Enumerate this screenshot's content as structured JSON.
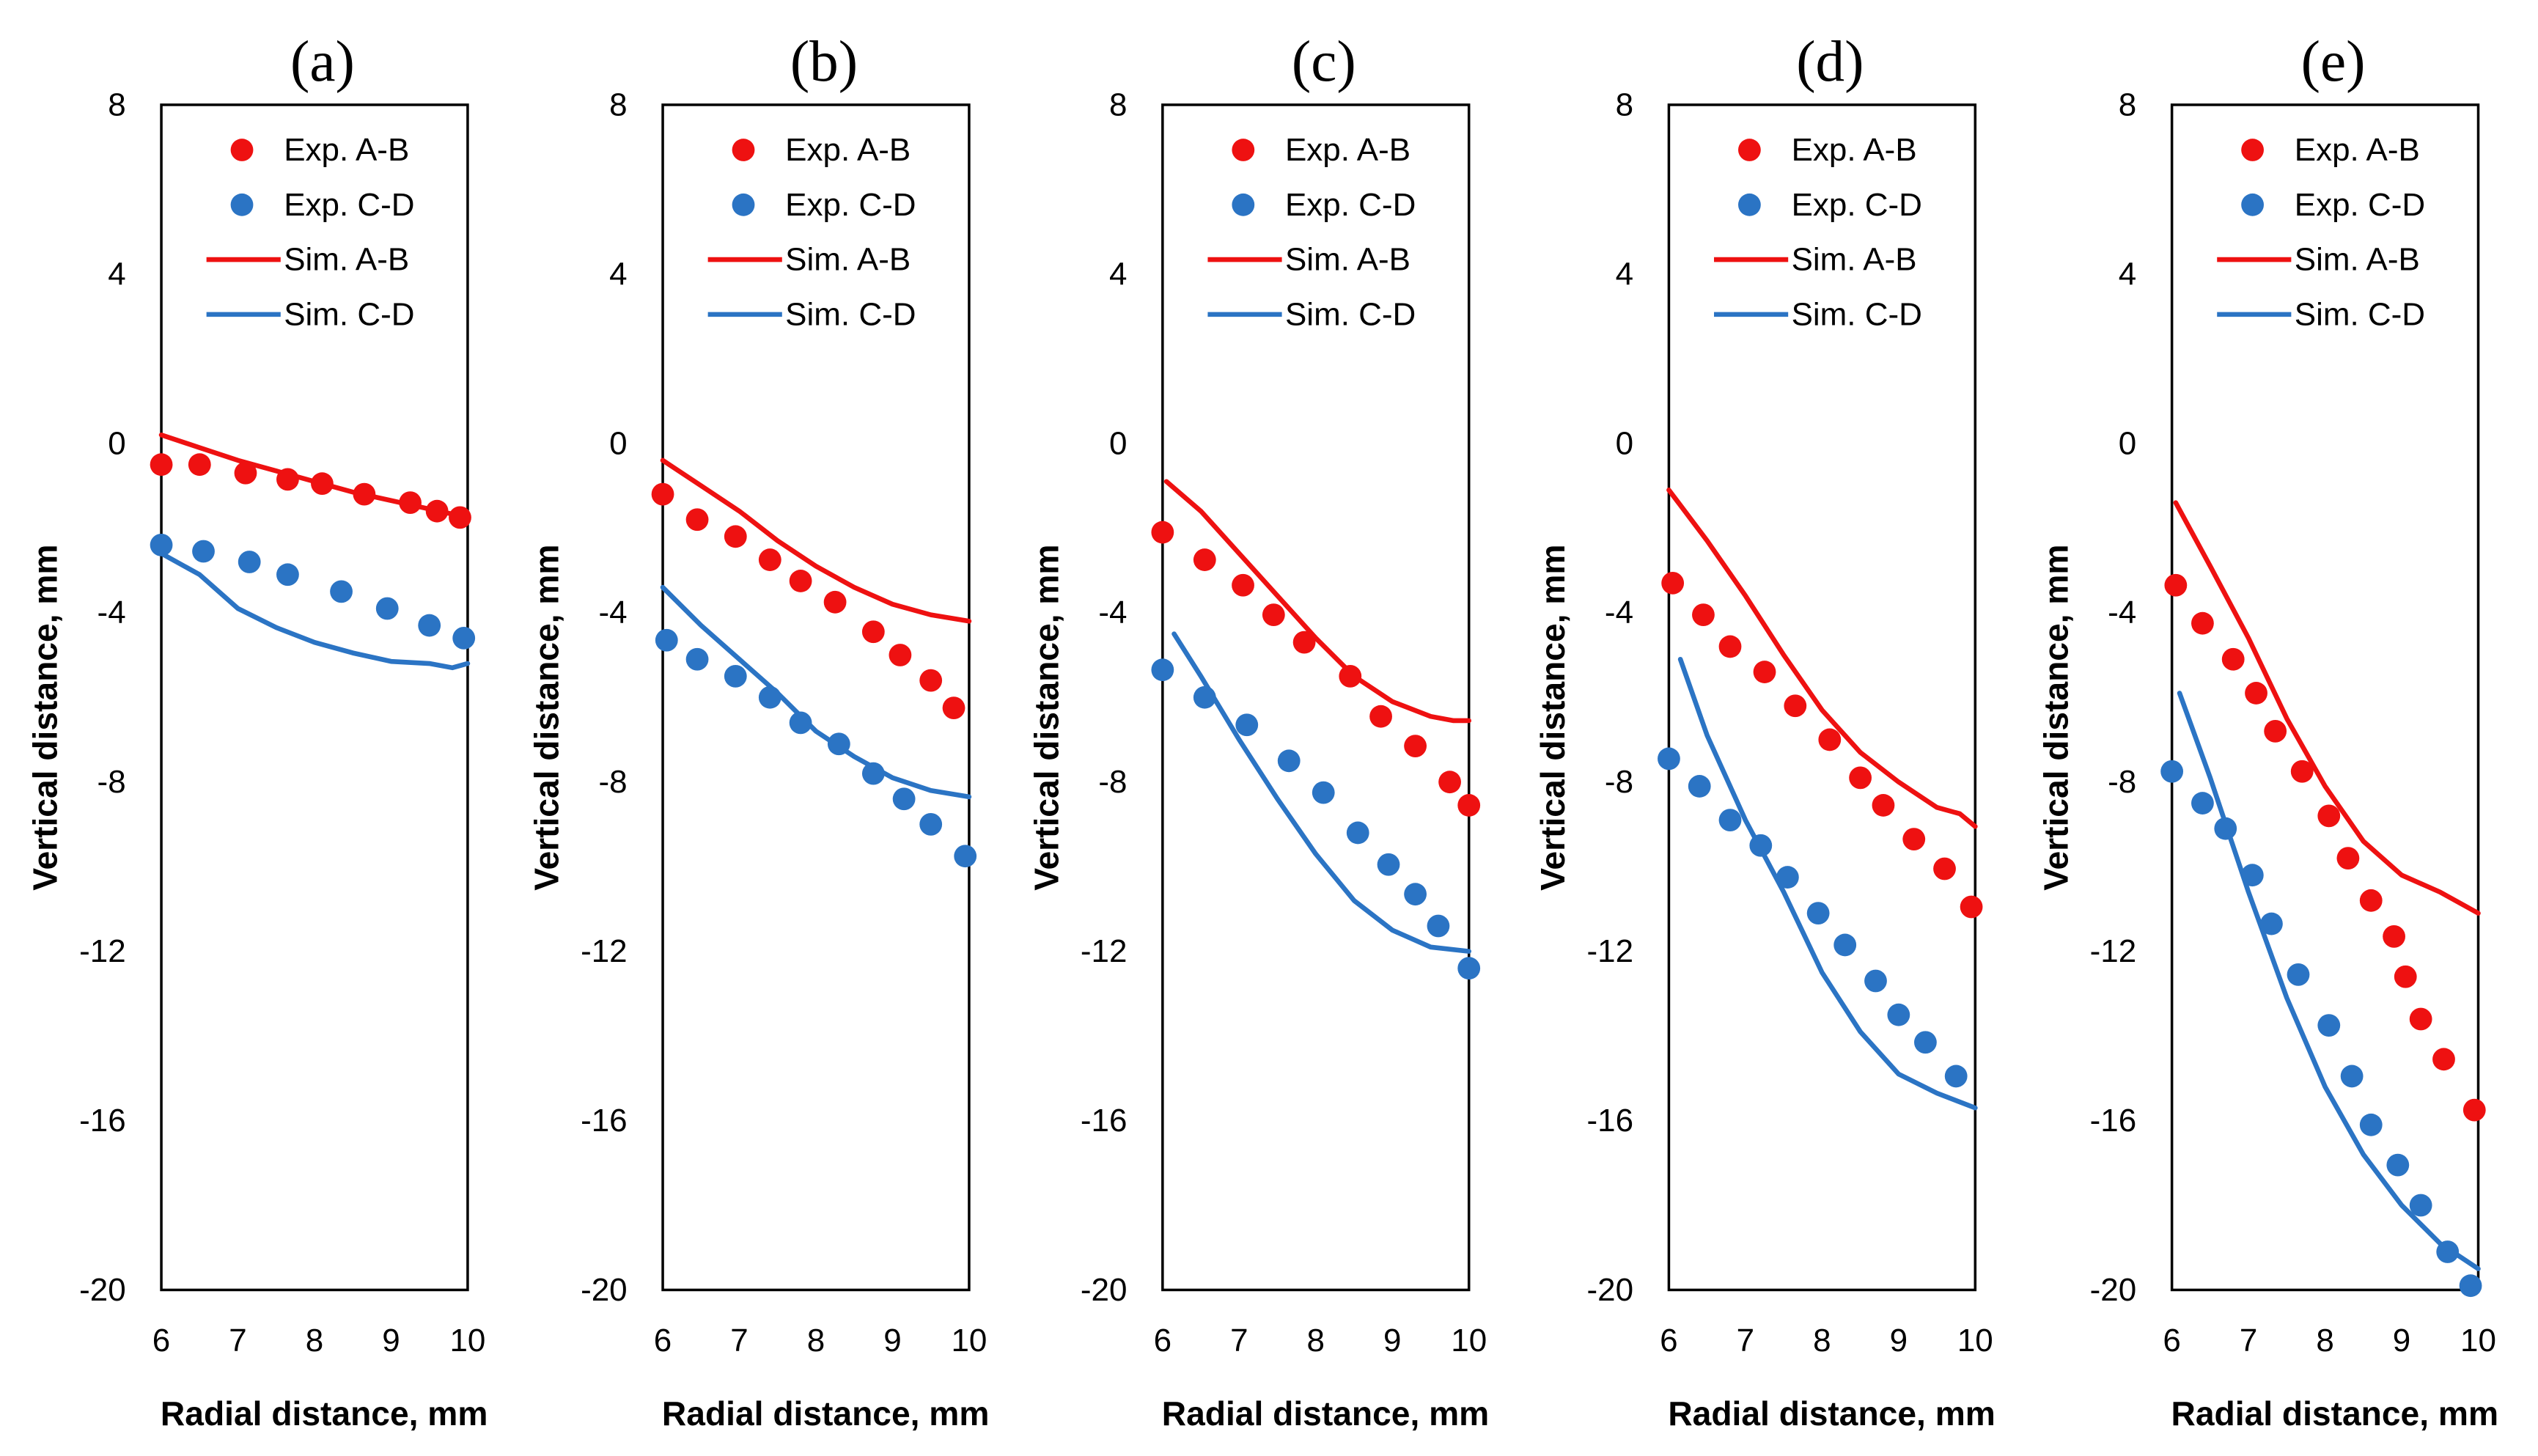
{
  "chart_data": [
    {
      "type": "scatter",
      "title": "(a)",
      "xlabel": "Radial distance, mm",
      "ylabel": "Vertical distance, mm",
      "xlim": [
        6,
        10
      ],
      "ylim": [
        -20,
        8
      ],
      "xticks": [
        6,
        7,
        8,
        9,
        10
      ],
      "yticks": [
        8,
        4,
        0,
        -4,
        -8,
        -12,
        -16,
        -20
      ],
      "grid": false,
      "legend_position": "top-right",
      "series": [
        {
          "name": "Exp. A-B",
          "style": "markers",
          "color": "#ee1111",
          "x": [
            6.0,
            6.5,
            7.1,
            7.65,
            8.1,
            8.65,
            9.25,
            9.6,
            9.9
          ],
          "y": [
            -0.5,
            -0.5,
            -0.7,
            -0.85,
            -0.95,
            -1.2,
            -1.4,
            -1.6,
            -1.75
          ]
        },
        {
          "name": "Exp. C-D",
          "style": "markers",
          "color": "#2b74c4",
          "x": [
            6.0,
            6.55,
            7.15,
            7.65,
            8.35,
            8.95,
            9.5,
            9.95
          ],
          "y": [
            -2.4,
            -2.55,
            -2.8,
            -3.1,
            -3.5,
            -3.9,
            -4.3,
            -4.6
          ]
        },
        {
          "name": "Sim. A-B",
          "style": "line",
          "color": "#ee1111",
          "x": [
            6,
            6.5,
            7,
            7.5,
            8,
            8.5,
            9,
            9.5,
            10
          ],
          "y": [
            0.2,
            -0.1,
            -0.4,
            -0.65,
            -0.9,
            -1.15,
            -1.35,
            -1.55,
            -1.75
          ]
        },
        {
          "name": "Sim. C-D",
          "style": "line",
          "color": "#2b74c4",
          "x": [
            6,
            6.5,
            7,
            7.5,
            8,
            8.5,
            9,
            9.5,
            9.8,
            10
          ],
          "y": [
            -2.6,
            -3.1,
            -3.9,
            -4.35,
            -4.7,
            -4.95,
            -5.15,
            -5.2,
            -5.3,
            -5.2
          ]
        }
      ]
    },
    {
      "type": "scatter",
      "title": "(b)",
      "xlabel": "Radial distance, mm",
      "ylabel": "Vertical distance, mm",
      "xlim": [
        6,
        10
      ],
      "ylim": [
        -20,
        8
      ],
      "xticks": [
        6,
        7,
        8,
        9,
        10
      ],
      "yticks": [
        8,
        4,
        0,
        -4,
        -8,
        -12,
        -16,
        -20
      ],
      "grid": false,
      "legend_position": "top-right",
      "series": [
        {
          "name": "Exp. A-B",
          "style": "markers",
          "color": "#ee1111",
          "x": [
            6.0,
            6.45,
            6.95,
            7.4,
            7.8,
            8.25,
            8.75,
            9.1,
            9.5,
            9.8
          ],
          "y": [
            -1.2,
            -1.8,
            -2.2,
            -2.75,
            -3.25,
            -3.75,
            -4.45,
            -5.0,
            -5.6,
            -6.25
          ]
        },
        {
          "name": "Exp. C-D",
          "style": "markers",
          "color": "#2b74c4",
          "x": [
            6.05,
            6.45,
            6.95,
            7.4,
            7.8,
            8.3,
            8.75,
            9.15,
            9.5,
            9.95
          ],
          "y": [
            -4.65,
            -5.1,
            -5.5,
            -6.0,
            -6.6,
            -7.1,
            -7.8,
            -8.4,
            -9.0,
            -9.75
          ]
        },
        {
          "name": "Sim. A-B",
          "style": "line",
          "color": "#ee1111",
          "x": [
            6,
            6.5,
            7,
            7.5,
            8,
            8.5,
            9,
            9.5,
            10
          ],
          "y": [
            -0.4,
            -1.0,
            -1.6,
            -2.3,
            -2.9,
            -3.4,
            -3.8,
            -4.05,
            -4.2
          ]
        },
        {
          "name": "Sim. C-D",
          "style": "line",
          "color": "#2b74c4",
          "x": [
            6,
            6.5,
            7,
            7.5,
            8,
            8.5,
            9,
            9.5,
            10
          ],
          "y": [
            -3.4,
            -4.3,
            -5.1,
            -5.9,
            -6.8,
            -7.4,
            -7.9,
            -8.2,
            -8.35
          ]
        }
      ]
    },
    {
      "type": "scatter",
      "title": "(c)",
      "xlabel": "Radial distance, mm",
      "ylabel": "Vertical distance, mm",
      "xlim": [
        6,
        10
      ],
      "ylim": [
        -20,
        8
      ],
      "xticks": [
        6,
        7,
        8,
        9,
        10
      ],
      "yticks": [
        8,
        4,
        0,
        -4,
        -8,
        -12,
        -16,
        -20
      ],
      "grid": false,
      "legend_position": "top-right",
      "series": [
        {
          "name": "Exp. A-B",
          "style": "markers",
          "color": "#ee1111",
          "x": [
            6.0,
            6.55,
            7.05,
            7.45,
            7.85,
            8.45,
            8.85,
            9.3,
            9.75,
            10.0
          ],
          "y": [
            -2.1,
            -2.75,
            -3.35,
            -4.05,
            -4.7,
            -5.5,
            -6.45,
            -7.15,
            -8.0,
            -8.55
          ]
        },
        {
          "name": "Exp. C-D",
          "style": "markers",
          "color": "#2b74c4",
          "x": [
            6.0,
            6.55,
            7.1,
            7.65,
            8.1,
            8.55,
            8.95,
            9.3,
            9.6,
            10.0
          ],
          "y": [
            -5.35,
            -6.0,
            -6.65,
            -7.5,
            -8.25,
            -9.2,
            -9.95,
            -10.65,
            -11.4,
            -12.4
          ]
        },
        {
          "name": "Sim. A-B",
          "style": "line",
          "color": "#ee1111",
          "x": [
            6.05,
            6.5,
            7,
            7.5,
            8,
            8.5,
            9,
            9.5,
            9.8,
            10
          ],
          "y": [
            -0.9,
            -1.6,
            -2.6,
            -3.6,
            -4.6,
            -5.5,
            -6.1,
            -6.45,
            -6.55,
            -6.55
          ]
        },
        {
          "name": "Sim. C-D",
          "style": "line",
          "color": "#2b74c4",
          "x": [
            6.15,
            6.5,
            7,
            7.5,
            8,
            8.5,
            9,
            9.5,
            10
          ],
          "y": [
            -4.5,
            -5.5,
            -7.0,
            -8.4,
            -9.7,
            -10.8,
            -11.5,
            -11.9,
            -12.0
          ]
        }
      ]
    },
    {
      "type": "scatter",
      "title": "(d)",
      "xlabel": "Radial distance, mm",
      "ylabel": "Vertical distance, mm",
      "xlim": [
        6,
        10
      ],
      "ylim": [
        -20,
        8
      ],
      "xticks": [
        6,
        7,
        8,
        9,
        10
      ],
      "yticks": [
        8,
        4,
        0,
        -4,
        -8,
        -12,
        -16,
        -20
      ],
      "grid": false,
      "legend_position": "top-right",
      "series": [
        {
          "name": "Exp. A-B",
          "style": "markers",
          "color": "#ee1111",
          "x": [
            6.05,
            6.45,
            6.8,
            7.25,
            7.65,
            8.1,
            8.5,
            8.8,
            9.2,
            9.6,
            9.95
          ],
          "y": [
            -3.3,
            -4.05,
            -4.8,
            -5.4,
            -6.2,
            -7.0,
            -7.9,
            -8.55,
            -9.35,
            -10.05,
            -10.95
          ]
        },
        {
          "name": "Exp. C-D",
          "style": "markers",
          "color": "#2b74c4",
          "x": [
            6.0,
            6.4,
            6.8,
            7.2,
            7.55,
            7.95,
            8.3,
            8.7,
            9.0,
            9.35,
            9.75
          ],
          "y": [
            -7.45,
            -8.1,
            -8.9,
            -9.5,
            -10.25,
            -11.1,
            -11.85,
            -12.7,
            -13.5,
            -14.15,
            -14.95
          ]
        },
        {
          "name": "Sim. A-B",
          "style": "line",
          "color": "#ee1111",
          "x": [
            6,
            6.5,
            7,
            7.5,
            8,
            8.5,
            9,
            9.5,
            9.8,
            10
          ],
          "y": [
            -1.1,
            -2.3,
            -3.6,
            -5.0,
            -6.3,
            -7.3,
            -8.0,
            -8.6,
            -8.75,
            -9.05
          ]
        },
        {
          "name": "Sim. C-D",
          "style": "line",
          "color": "#2b74c4",
          "x": [
            6.15,
            6.5,
            7,
            7.5,
            8,
            8.5,
            9,
            9.5,
            10
          ],
          "y": [
            -5.1,
            -6.9,
            -8.9,
            -10.6,
            -12.5,
            -13.9,
            -14.9,
            -15.35,
            -15.7
          ]
        }
      ]
    },
    {
      "type": "scatter",
      "title": "(e)",
      "xlabel": "Radial distance, mm",
      "ylabel": "Vertical distance, mm",
      "xlim": [
        6,
        10
      ],
      "ylim": [
        -20,
        8
      ],
      "xticks": [
        6,
        7,
        8,
        9,
        10
      ],
      "yticks": [
        8,
        4,
        0,
        -4,
        -8,
        -12,
        -16,
        -20
      ],
      "grid": false,
      "legend_position": "top-right",
      "series": [
        {
          "name": "Exp. A-B",
          "style": "markers",
          "color": "#ee1111",
          "x": [
            6.05,
            6.4,
            6.8,
            7.1,
            7.35,
            7.7,
            8.05,
            8.3,
            8.6,
            8.9,
            9.05,
            9.25,
            9.55,
            9.95
          ],
          "y": [
            -3.35,
            -4.25,
            -5.1,
            -5.9,
            -6.8,
            -7.75,
            -8.8,
            -9.8,
            -10.8,
            -11.65,
            -12.6,
            -13.6,
            -14.55,
            -15.75
          ]
        },
        {
          "name": "Exp. C-D",
          "style": "markers",
          "color": "#2b74c4",
          "x": [
            6.0,
            6.4,
            6.7,
            7.05,
            7.3,
            7.65,
            8.05,
            8.35,
            8.6,
            8.95,
            9.25,
            9.6,
            9.9
          ],
          "y": [
            -7.75,
            -8.5,
            -9.1,
            -10.2,
            -11.35,
            -12.55,
            -13.75,
            -14.95,
            -16.1,
            -17.05,
            -18.0,
            -19.1,
            -19.9
          ]
        },
        {
          "name": "Sim. A-B",
          "style": "line",
          "color": "#ee1111",
          "x": [
            6.05,
            6.5,
            7,
            7.5,
            8,
            8.5,
            9,
            9.5,
            10
          ],
          "y": [
            -1.4,
            -2.9,
            -4.6,
            -6.5,
            -8.1,
            -9.4,
            -10.2,
            -10.6,
            -11.1
          ]
        },
        {
          "name": "Sim. C-D",
          "style": "line",
          "color": "#2b74c4",
          "x": [
            6.1,
            6.5,
            7,
            7.5,
            8,
            8.5,
            9,
            9.5,
            10
          ],
          "y": [
            -5.9,
            -7.9,
            -10.6,
            -13.1,
            -15.2,
            -16.8,
            -18.0,
            -18.9,
            -19.5
          ]
        }
      ]
    }
  ]
}
